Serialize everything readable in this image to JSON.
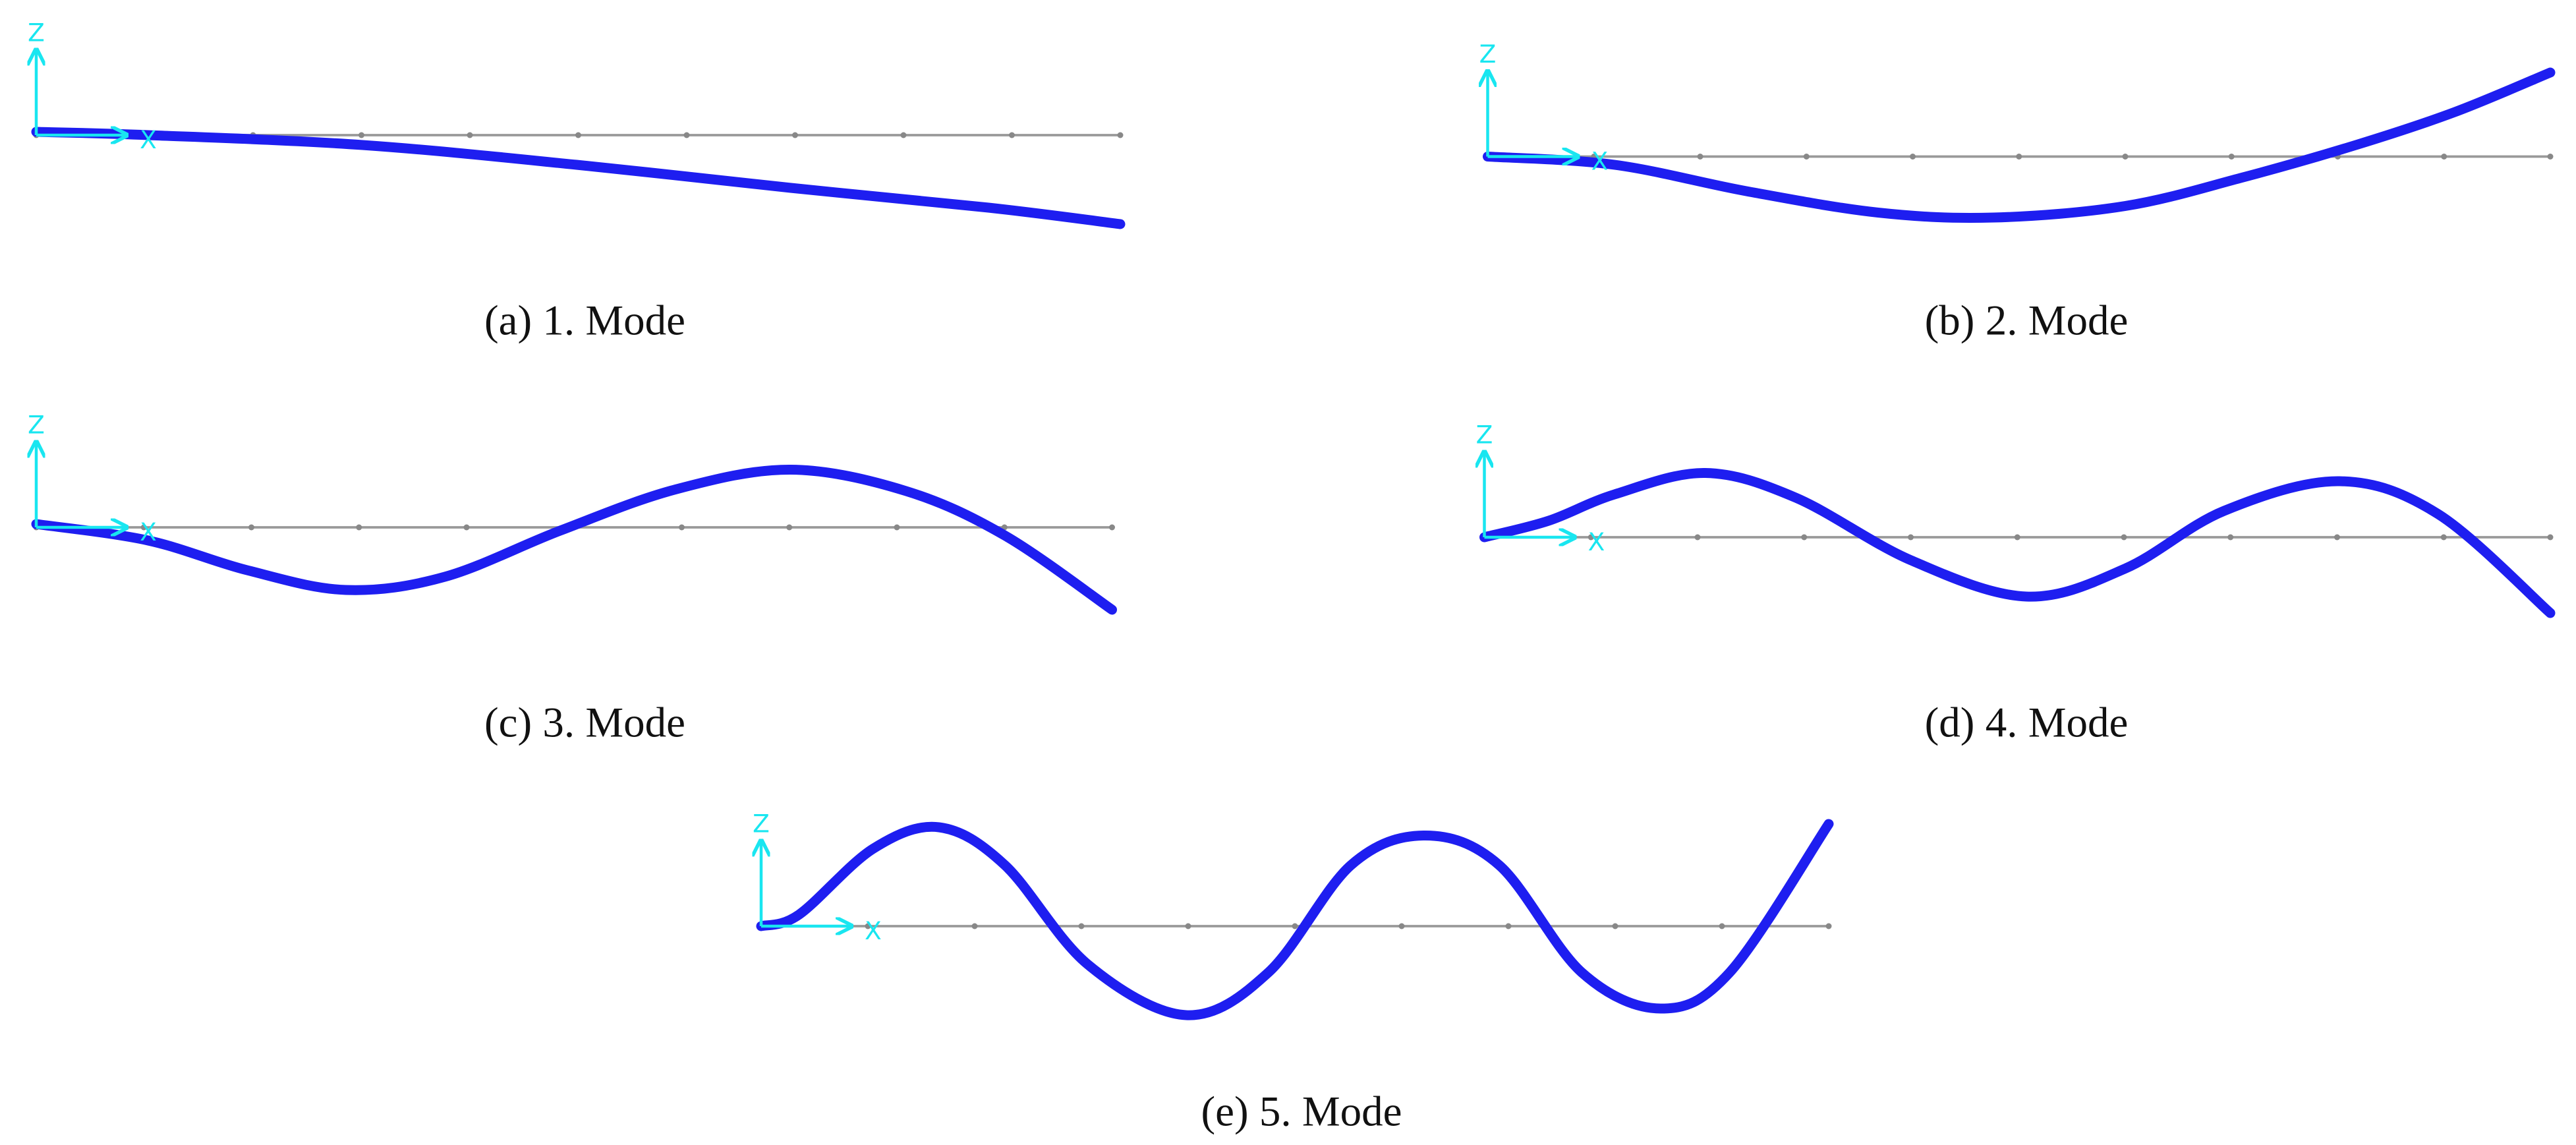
{
  "panels": [
    {
      "label": "(a)",
      "caption": "1. Mode",
      "z_axis": "Z",
      "x_axis": "X"
    },
    {
      "label": "(b)",
      "caption": "2. Mode",
      "z_axis": "Z",
      "x_axis": "X"
    },
    {
      "label": "(c)",
      "caption": "3. Mode",
      "z_axis": "Z",
      "x_axis": "X"
    },
    {
      "label": "(d)",
      "caption": "4. Mode",
      "z_axis": "Z",
      "x_axis": "X"
    },
    {
      "label": "(e)",
      "caption": "5. Mode",
      "z_axis": "Z",
      "x_axis": "X"
    }
  ]
}
